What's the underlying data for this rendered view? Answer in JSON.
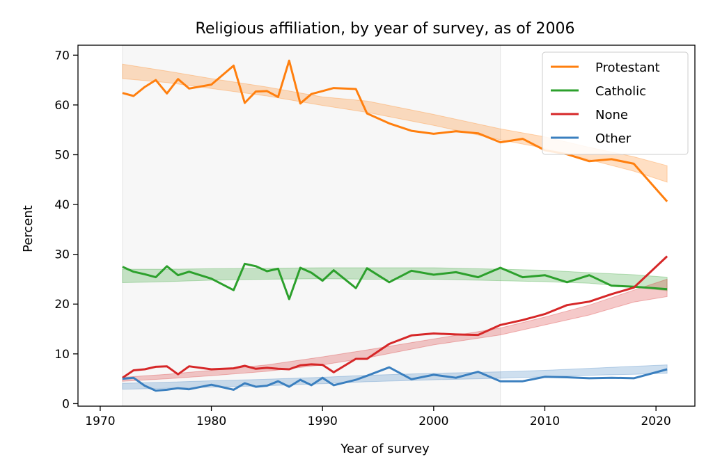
{
  "chart_data": {
    "type": "line",
    "title": "Religious affiliation, by year of survey, as of 2006",
    "xlabel": "Year of survey",
    "ylabel": "Percent",
    "xlim": [
      1968,
      2023.5
    ],
    "ylim": [
      -0.5,
      72
    ],
    "xticks": [
      1970,
      1980,
      1990,
      2000,
      2010,
      2020
    ],
    "yticks": [
      0,
      10,
      20,
      30,
      40,
      50,
      60,
      70
    ],
    "legend_position": "top-right",
    "highlight_span": [
      1972,
      2006
    ],
    "x": [
      1972,
      1973,
      1974,
      1975,
      1976,
      1977,
      1978,
      1980,
      1982,
      1983,
      1984,
      1985,
      1986,
      1987,
      1988,
      1989,
      1990,
      1991,
      1993,
      1994,
      1996,
      1998,
      2000,
      2002,
      2004,
      2006,
      2008,
      2010,
      2012,
      2014,
      2016,
      2018,
      2021
    ],
    "series": [
      {
        "name": "Protestant",
        "color": "#ff7f0e",
        "values": [
          62.4,
          61.8,
          63.6,
          65.0,
          62.3,
          65.2,
          63.3,
          64.1,
          67.9,
          60.4,
          62.7,
          62.8,
          61.6,
          68.9,
          60.3,
          62.2,
          62.8,
          63.4,
          63.2,
          58.3,
          56.3,
          54.8,
          54.2,
          54.7,
          54.3,
          52.5,
          53.2,
          50.9,
          50.1,
          48.7,
          49.1,
          48.2,
          40.6
        ],
        "band_x": [
          1972,
          1976,
          1980,
          1985,
          1990,
          1994,
          2000,
          2006,
          2010,
          2014,
          2018,
          2021
        ],
        "band_lower": [
          65.3,
          64.5,
          63.3,
          61.8,
          59.9,
          58.5,
          55.9,
          53.0,
          51.3,
          49.0,
          46.7,
          44.5
        ],
        "band_upper": [
          68.2,
          66.8,
          65.3,
          63.6,
          61.6,
          60.8,
          58.1,
          55.2,
          53.6,
          51.5,
          49.6,
          47.8
        ]
      },
      {
        "name": "Catholic",
        "color": "#2ca02c",
        "values": [
          27.5,
          26.5,
          26.0,
          25.4,
          27.6,
          25.8,
          26.5,
          25.1,
          22.8,
          28.1,
          27.6,
          26.6,
          27.1,
          21.0,
          27.3,
          26.3,
          24.7,
          26.8,
          23.2,
          27.2,
          24.4,
          26.7,
          25.9,
          26.4,
          25.4,
          27.3,
          25.4,
          25.8,
          24.4,
          25.8,
          23.7,
          23.5,
          23.0
        ],
        "band_x": [
          1972,
          1976,
          1980,
          1985,
          1990,
          1994,
          2000,
          2006,
          2010,
          2014,
          2018,
          2021
        ],
        "band_lower": [
          24.3,
          24.5,
          24.8,
          25.0,
          25.1,
          25.0,
          25.0,
          24.7,
          24.5,
          24.2,
          23.4,
          22.7
        ],
        "band_upper": [
          27.0,
          27.0,
          27.1,
          27.2,
          27.3,
          27.3,
          27.3,
          27.0,
          26.8,
          26.3,
          25.9,
          25.4
        ]
      },
      {
        "name": "None",
        "color": "#d62728",
        "values": [
          5.2,
          6.7,
          6.9,
          7.4,
          7.5,
          5.9,
          7.5,
          6.9,
          7.1,
          7.6,
          7.0,
          7.2,
          7.0,
          6.9,
          7.7,
          7.9,
          7.8,
          6.3,
          9.0,
          9.0,
          12.0,
          13.7,
          14.1,
          13.9,
          13.8,
          15.8,
          16.8,
          18.0,
          19.8,
          20.5,
          22.0,
          23.3,
          29.6
        ],
        "band_x": [
          1972,
          1976,
          1980,
          1985,
          1990,
          1994,
          2000,
          2006,
          2010,
          2014,
          2018,
          2021
        ],
        "band_lower": [
          4.5,
          5.0,
          5.6,
          6.5,
          7.8,
          9.2,
          11.8,
          13.8,
          15.8,
          17.8,
          20.4,
          21.5
        ],
        "band_upper": [
          5.3,
          5.9,
          6.7,
          7.8,
          9.4,
          10.8,
          13.0,
          15.2,
          17.4,
          19.8,
          22.8,
          25.0
        ]
      },
      {
        "name": "Other",
        "color": "#3a7fbf",
        "values": [
          5.0,
          5.2,
          3.6,
          2.6,
          2.8,
          3.1,
          2.9,
          3.8,
          2.8,
          4.1,
          3.4,
          3.6,
          4.5,
          3.4,
          4.8,
          3.7,
          5.2,
          3.7,
          4.8,
          5.6,
          7.3,
          4.9,
          5.8,
          5.2,
          6.4,
          4.5,
          4.5,
          5.4,
          5.3,
          5.1,
          5.2,
          5.1,
          6.9
        ],
        "band_x": [
          1972,
          1976,
          1980,
          1985,
          1990,
          1994,
          2000,
          2006,
          2010,
          2014,
          2018,
          2021
        ],
        "band_lower": [
          2.9,
          3.1,
          3.3,
          3.6,
          4.0,
          4.4,
          4.8,
          5.1,
          5.4,
          5.7,
          5.9,
          6.1
        ],
        "band_upper": [
          4.1,
          4.3,
          4.6,
          4.9,
          5.3,
          5.7,
          6.1,
          6.4,
          6.7,
          7.1,
          7.5,
          7.8
        ]
      }
    ]
  }
}
